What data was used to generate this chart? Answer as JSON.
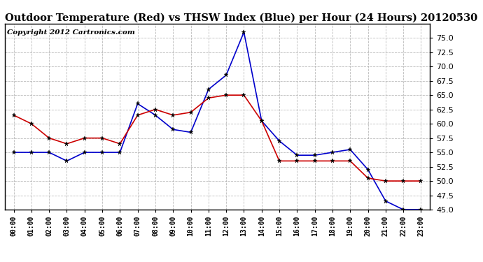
{
  "title": "Outdoor Temperature (Red) vs THSW Index (Blue) per Hour (24 Hours) 20120530",
  "copyright": "Copyright 2012 Cartronics.com",
  "hours": [
    "00:00",
    "01:00",
    "02:00",
    "03:00",
    "04:00",
    "05:00",
    "06:00",
    "07:00",
    "08:00",
    "09:00",
    "10:00",
    "11:00",
    "12:00",
    "13:00",
    "14:00",
    "15:00",
    "16:00",
    "17:00",
    "18:00",
    "19:00",
    "20:00",
    "21:00",
    "22:00",
    "23:00"
  ],
  "red_temp": [
    61.5,
    60.0,
    57.5,
    56.5,
    57.5,
    57.5,
    56.5,
    61.5,
    62.5,
    61.5,
    62.0,
    64.5,
    65.0,
    65.0,
    60.5,
    53.5,
    53.5,
    53.5,
    53.5,
    53.5,
    50.5,
    50.0,
    50.0,
    50.0
  ],
  "blue_thsw": [
    55.0,
    55.0,
    55.0,
    53.5,
    55.0,
    55.0,
    55.0,
    63.5,
    61.5,
    59.0,
    58.5,
    66.0,
    68.5,
    76.0,
    60.5,
    57.0,
    54.5,
    54.5,
    55.0,
    55.5,
    52.0,
    46.5,
    45.0,
    45.0
  ],
  "ylim": [
    45.0,
    77.5
  ],
  "yticks": [
    45.0,
    47.5,
    50.0,
    52.5,
    55.0,
    57.5,
    60.0,
    62.5,
    65.0,
    67.5,
    70.0,
    72.5,
    75.0
  ],
  "red_color": "#cc0000",
  "blue_color": "#0000cc",
  "bg_color": "#ffffff",
  "grid_color": "#aaaaaa",
  "title_fontsize": 10.5,
  "copyright_fontsize": 7.5
}
